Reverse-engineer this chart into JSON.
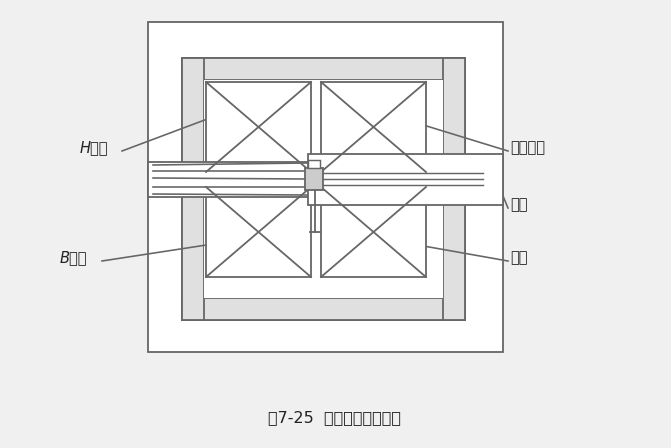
{
  "title": "图7-25  磁导仪结构示意图",
  "bg_color": "#f0f0f0",
  "line_color": "#666666",
  "fill_outer": "#e8e8e8",
  "fill_white": "#ffffff",
  "fill_gray": "#cccccc",
  "fill_lgray": "#e0e0e0",
  "label_H": "H线圈",
  "label_B": "B线圈",
  "label_magnetize": "磁化线组",
  "label_pole": "极头",
  "label_yoke": "磁轭"
}
